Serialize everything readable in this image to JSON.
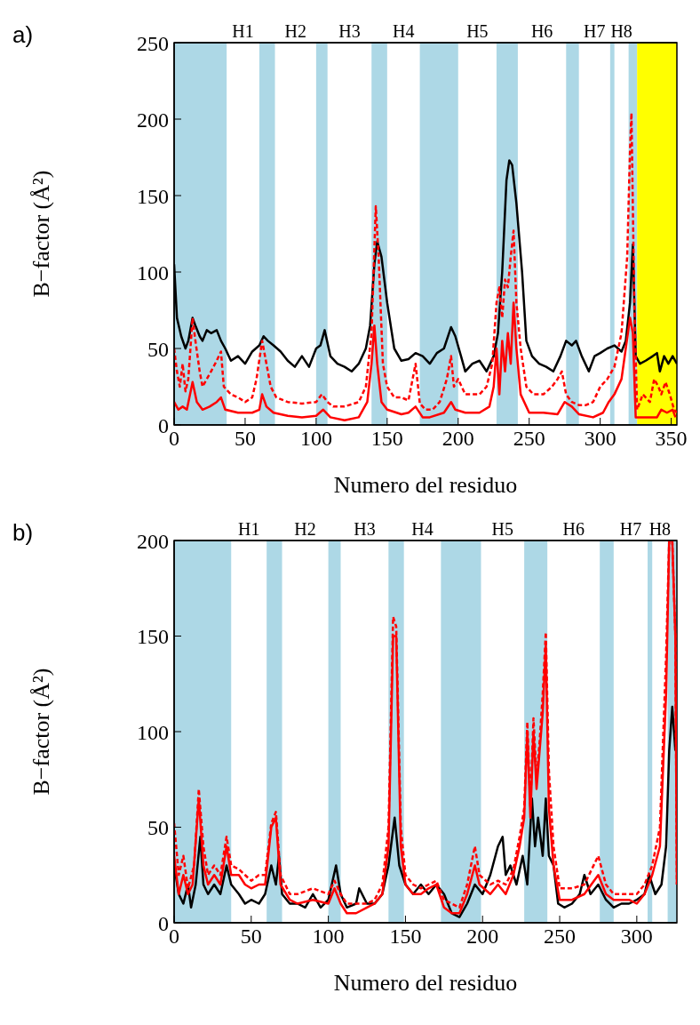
{
  "chart_data": [
    {
      "type": "line",
      "xlabel": "Numero del residuo",
      "ylabel": "B−factor (Å²)",
      "xlim": [
        0,
        354
      ],
      "xticks": [
        0,
        50,
        100,
        150,
        200,
        250,
        300,
        350
      ],
      "ylim": [
        0,
        250
      ],
      "yticks": [
        0,
        50,
        100,
        150,
        200,
        250
      ],
      "annotations": [
        "a)",
        "H1",
        "H2",
        "H3",
        "H4",
        "H5",
        "H6",
        "H7",
        "H8"
      ],
      "bands": [
        {
          "axis": "x",
          "from": 0,
          "to": 37,
          "color": "#add8e6"
        },
        {
          "axis": "x",
          "from": 60,
          "to": 71,
          "color": "#add8e6"
        },
        {
          "axis": "x",
          "from": 100,
          "to": 108,
          "color": "#add8e6"
        },
        {
          "axis": "x",
          "from": 139,
          "to": 150,
          "color": "#add8e6"
        },
        {
          "axis": "x",
          "from": 173,
          "to": 200,
          "color": "#add8e6"
        },
        {
          "axis": "x",
          "from": 227,
          "to": 242,
          "color": "#add8e6"
        },
        {
          "axis": "x",
          "from": 276,
          "to": 285,
          "color": "#add8e6"
        },
        {
          "axis": "x",
          "from": 307,
          "to": 310,
          "color": "#add8e6"
        },
        {
          "axis": "x",
          "from": 320,
          "to": 326,
          "color": "#add8e6"
        },
        {
          "axis": "x",
          "from": 326,
          "to": 354,
          "color": "#ffff00"
        }
      ],
      "series": [
        {
          "color": "#000000",
          "line_style": "solid",
          "x": [
            0,
            2,
            5,
            8,
            10,
            13,
            15,
            18,
            20,
            23,
            26,
            30,
            33,
            36,
            40,
            45,
            50,
            55,
            60,
            63,
            66,
            70,
            75,
            80,
            85,
            90,
            95,
            100,
            103,
            106,
            110,
            115,
            120,
            125,
            130,
            135,
            138,
            141,
            143,
            146,
            150,
            155,
            160,
            165,
            170,
            175,
            180,
            185,
            190,
            195,
            198,
            202,
            205,
            210,
            215,
            220,
            225,
            228,
            231,
            234,
            236,
            238,
            241,
            245,
            248,
            252,
            257,
            262,
            267,
            272,
            276,
            280,
            283,
            287,
            292,
            296,
            300,
            305,
            310,
            315,
            318,
            321,
            323,
            325,
            328,
            332,
            337,
            340,
            342,
            345,
            348,
            351,
            354
          ],
          "values": [
            105,
            70,
            58,
            50,
            55,
            70,
            65,
            58,
            55,
            62,
            60,
            62,
            55,
            50,
            42,
            45,
            40,
            48,
            52,
            58,
            55,
            52,
            48,
            42,
            38,
            45,
            38,
            50,
            52,
            62,
            45,
            40,
            38,
            35,
            40,
            50,
            65,
            105,
            120,
            110,
            80,
            50,
            42,
            43,
            47,
            45,
            40,
            47,
            50,
            64,
            58,
            45,
            35,
            40,
            42,
            35,
            45,
            60,
            100,
            160,
            173,
            170,
            145,
            100,
            55,
            45,
            40,
            38,
            35,
            45,
            55,
            52,
            55,
            45,
            35,
            45,
            47,
            50,
            52,
            48,
            55,
            80,
            118,
            45,
            40,
            42,
            45,
            47,
            35,
            45,
            40,
            45,
            40
          ]
        },
        {
          "color": "#ff0000",
          "line_style": "dashed",
          "x": [
            0,
            2,
            4,
            6,
            8,
            10,
            13,
            15,
            18,
            20,
            23,
            26,
            30,
            33,
            35,
            40,
            45,
            50,
            55,
            58,
            62,
            65,
            68,
            72,
            80,
            90,
            100,
            104,
            108,
            112,
            120,
            130,
            135,
            139,
            142,
            144,
            147,
            150,
            155,
            160,
            165,
            170,
            173,
            177,
            182,
            187,
            192,
            195,
            197,
            200,
            205,
            210,
            215,
            220,
            224,
            227,
            229,
            231,
            233,
            235,
            237,
            239,
            241,
            244,
            248,
            253,
            260,
            266,
            270,
            273,
            276,
            280,
            285,
            290,
            295,
            300,
            305,
            310,
            315,
            319,
            321,
            322,
            324,
            326,
            330,
            335,
            338,
            341,
            343,
            346,
            349,
            352,
            354
          ],
          "values": [
            50,
            35,
            25,
            40,
            22,
            30,
            70,
            55,
            35,
            25,
            30,
            35,
            42,
            48,
            25,
            20,
            18,
            15,
            18,
            30,
            55,
            40,
            25,
            18,
            15,
            14,
            15,
            20,
            15,
            12,
            12,
            15,
            25,
            60,
            143,
            110,
            40,
            25,
            18,
            18,
            16,
            40,
            14,
            10,
            10,
            15,
            30,
            45,
            25,
            30,
            20,
            20,
            20,
            25,
            40,
            80,
            90,
            70,
            95,
            90,
            110,
            127,
            80,
            50,
            25,
            20,
            20,
            25,
            30,
            35,
            20,
            15,
            13,
            13,
            15,
            25,
            30,
            38,
            60,
            110,
            180,
            204,
            80,
            10,
            20,
            15,
            30,
            25,
            20,
            28,
            20,
            10,
            8
          ]
        },
        {
          "color": "#ff0000",
          "line_style": "solid",
          "x": [
            0,
            3,
            6,
            9,
            13,
            16,
            20,
            25,
            30,
            33,
            36,
            45,
            55,
            60,
            62,
            65,
            70,
            80,
            90,
            100,
            105,
            110,
            120,
            130,
            136,
            139,
            141,
            143,
            146,
            150,
            160,
            165,
            170,
            175,
            180,
            190,
            195,
            198,
            205,
            215,
            222,
            225,
            227,
            229,
            231,
            233,
            235,
            237,
            239,
            241,
            244,
            250,
            260,
            270,
            275,
            280,
            285,
            295,
            302,
            306,
            310,
            315,
            318,
            321,
            323,
            325,
            330,
            340,
            343,
            347,
            351,
            353
          ],
          "values": [
            15,
            10,
            12,
            10,
            28,
            15,
            10,
            12,
            15,
            18,
            10,
            8,
            8,
            10,
            20,
            12,
            8,
            6,
            5,
            6,
            10,
            5,
            3,
            5,
            15,
            40,
            65,
            40,
            15,
            10,
            7,
            8,
            12,
            5,
            5,
            8,
            15,
            10,
            8,
            8,
            12,
            25,
            50,
            20,
            55,
            35,
            60,
            40,
            80,
            50,
            20,
            8,
            8,
            7,
            15,
            12,
            7,
            5,
            8,
            15,
            20,
            30,
            50,
            70,
            60,
            5,
            5,
            5,
            10,
            8,
            10,
            5
          ]
        }
      ]
    },
    {
      "type": "line",
      "xlabel": "Numero del residuo",
      "ylabel": "B−factor (Å²)",
      "xlim": [
        0,
        326
      ],
      "xticks": [
        0,
        50,
        100,
        150,
        200,
        250,
        300
      ],
      "ylim": [
        0,
        200
      ],
      "yticks": [
        0,
        50,
        100,
        150,
        200
      ],
      "annotations": [
        "b)",
        "H1",
        "H2",
        "H3",
        "H4",
        "H5",
        "H6",
        "H7",
        "H8"
      ],
      "bands": [
        {
          "axis": "x",
          "from": 0,
          "to": 37,
          "color": "#add8e6"
        },
        {
          "axis": "x",
          "from": 60,
          "to": 70,
          "color": "#add8e6"
        },
        {
          "axis": "x",
          "from": 100,
          "to": 108,
          "color": "#add8e6"
        },
        {
          "axis": "x",
          "from": 139,
          "to": 149,
          "color": "#add8e6"
        },
        {
          "axis": "x",
          "from": 173,
          "to": 199,
          "color": "#add8e6"
        },
        {
          "axis": "x",
          "from": 227,
          "to": 242,
          "color": "#add8e6"
        },
        {
          "axis": "x",
          "from": 276,
          "to": 285,
          "color": "#add8e6"
        },
        {
          "axis": "x",
          "from": 307,
          "to": 310,
          "color": "#add8e6"
        },
        {
          "axis": "x",
          "from": 320,
          "to": 326,
          "color": "#add8e6"
        }
      ],
      "series": [
        {
          "color": "#000000",
          "line_style": "solid",
          "x": [
            0,
            3,
            6,
            9,
            11,
            14,
            17,
            19,
            22,
            26,
            30,
            34,
            37,
            42,
            46,
            50,
            55,
            59,
            63,
            66,
            68,
            70,
            75,
            80,
            85,
            90,
            95,
            100,
            105,
            108,
            112,
            118,
            120,
            125,
            130,
            135,
            139,
            143,
            146,
            150,
            155,
            160,
            165,
            170,
            175,
            180,
            185,
            190,
            195,
            200,
            205,
            210,
            213,
            215,
            218,
            222,
            226,
            229,
            232,
            234,
            236,
            239,
            241,
            243,
            246,
            249,
            253,
            258,
            263,
            266,
            270,
            275,
            280,
            285,
            290,
            295,
            300,
            305,
            308,
            312,
            316,
            319,
            321,
            323,
            325
          ],
          "values": [
            30,
            15,
            10,
            20,
            8,
            20,
            45,
            20,
            15,
            20,
            15,
            30,
            20,
            15,
            10,
            12,
            10,
            15,
            30,
            20,
            35,
            15,
            10,
            10,
            8,
            15,
            8,
            12,
            30,
            15,
            8,
            10,
            18,
            10,
            10,
            15,
            30,
            55,
            30,
            20,
            15,
            20,
            15,
            20,
            15,
            5,
            3,
            10,
            20,
            15,
            25,
            40,
            45,
            25,
            30,
            20,
            35,
            20,
            65,
            40,
            55,
            35,
            65,
            35,
            30,
            10,
            8,
            10,
            15,
            25,
            15,
            20,
            12,
            8,
            10,
            10,
            12,
            15,
            25,
            15,
            20,
            40,
            90,
            113,
            90
          ]
        },
        {
          "color": "#ff0000",
          "line_style": "dashed",
          "x": [
            0,
            3,
            6,
            9,
            13,
            16,
            19,
            22,
            26,
            30,
            34,
            37,
            42,
            46,
            50,
            55,
            59,
            63,
            66,
            69,
            75,
            80,
            90,
            100,
            104,
            108,
            112,
            118,
            125,
            130,
            135,
            139,
            142,
            144,
            147,
            150,
            155,
            160,
            165,
            170,
            175,
            180,
            185,
            190,
            195,
            198,
            205,
            210,
            215,
            220,
            224,
            227,
            229,
            231,
            233,
            235,
            237,
            239,
            241,
            243,
            246,
            250,
            258,
            266,
            275,
            280,
            285,
            295,
            300,
            305,
            310,
            315,
            319,
            321,
            323,
            325,
            326
          ],
          "values": [
            52,
            25,
            35,
            18,
            30,
            70,
            40,
            25,
            30,
            25,
            45,
            30,
            28,
            25,
            22,
            25,
            25,
            52,
            58,
            25,
            15,
            15,
            18,
            15,
            22,
            15,
            10,
            10,
            10,
            12,
            20,
            50,
            160,
            155,
            50,
            25,
            20,
            18,
            20,
            22,
            12,
            10,
            8,
            20,
            40,
            25,
            20,
            22,
            20,
            28,
            45,
            60,
            105,
            60,
            107,
            75,
            95,
            120,
            152,
            80,
            40,
            18,
            18,
            20,
            35,
            20,
            15,
            15,
            15,
            20,
            30,
            50,
            140,
            200,
            200,
            150,
            20
          ]
        },
        {
          "color": "#ff0000",
          "line_style": "solid",
          "x": [
            0,
            3,
            6,
            9,
            12,
            16,
            19,
            22,
            26,
            30,
            34,
            37,
            42,
            46,
            50,
            55,
            59,
            63,
            66,
            69,
            75,
            80,
            90,
            100,
            104,
            108,
            112,
            118,
            125,
            130,
            135,
            139,
            142,
            144,
            147,
            150,
            155,
            160,
            165,
            170,
            175,
            180,
            185,
            190,
            195,
            198,
            205,
            210,
            215,
            220,
            224,
            227,
            229,
            231,
            233,
            235,
            237,
            239,
            241,
            243,
            246,
            250,
            258,
            266,
            275,
            280,
            285,
            295,
            300,
            305,
            310,
            315,
            319,
            321,
            323,
            325,
            326
          ],
          "values": [
            35,
            15,
            25,
            15,
            20,
            65,
            30,
            20,
            25,
            20,
            40,
            25,
            25,
            20,
            18,
            20,
            20,
            50,
            55,
            20,
            12,
            10,
            12,
            10,
            18,
            10,
            5,
            5,
            8,
            10,
            15,
            40,
            150,
            150,
            40,
            20,
            15,
            15,
            18,
            20,
            8,
            5,
            5,
            15,
            30,
            20,
            15,
            20,
            15,
            25,
            40,
            55,
            100,
            55,
            100,
            70,
            90,
            110,
            145,
            60,
            30,
            12,
            12,
            15,
            25,
            15,
            12,
            12,
            10,
            15,
            25,
            40,
            120,
            200,
            200,
            150,
            20
          ]
        }
      ]
    }
  ]
}
